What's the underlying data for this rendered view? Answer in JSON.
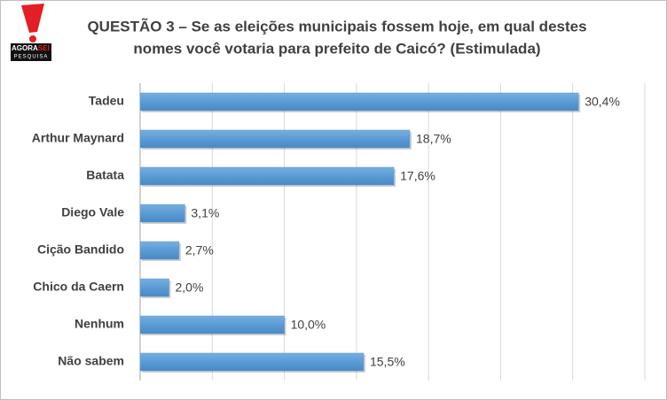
{
  "logo": {
    "brand_left": "AGORA",
    "brand_right": "SEI",
    "tagline": "PESQUISA"
  },
  "chart_data": {
    "type": "barh",
    "title": [
      "QUESTÃO 3 – Se as eleições municipais fossem hoje, em qual destes",
      "nomes você votaria para prefeito de Caicó? (Estimulada)"
    ],
    "categories": [
      "Tadeu",
      "Arthur Maynard",
      "Batata",
      "Diego Vale",
      "Cição Bandido",
      "Chico da Caern",
      "Nenhum",
      "Não sabem"
    ],
    "values": [
      30.4,
      18.7,
      17.6,
      3.1,
      2.7,
      2.0,
      10.0,
      15.5
    ],
    "value_labels": [
      "30,4%",
      "18,7%",
      "17,6%",
      "3,1%",
      "2,7%",
      "2,0%",
      "10,0%",
      "15,5%"
    ],
    "color": "#5b9bd5",
    "xlim": [
      0,
      35
    ],
    "xticks": [
      0,
      5,
      10,
      15,
      20,
      25,
      30,
      35
    ],
    "grid": true
  }
}
